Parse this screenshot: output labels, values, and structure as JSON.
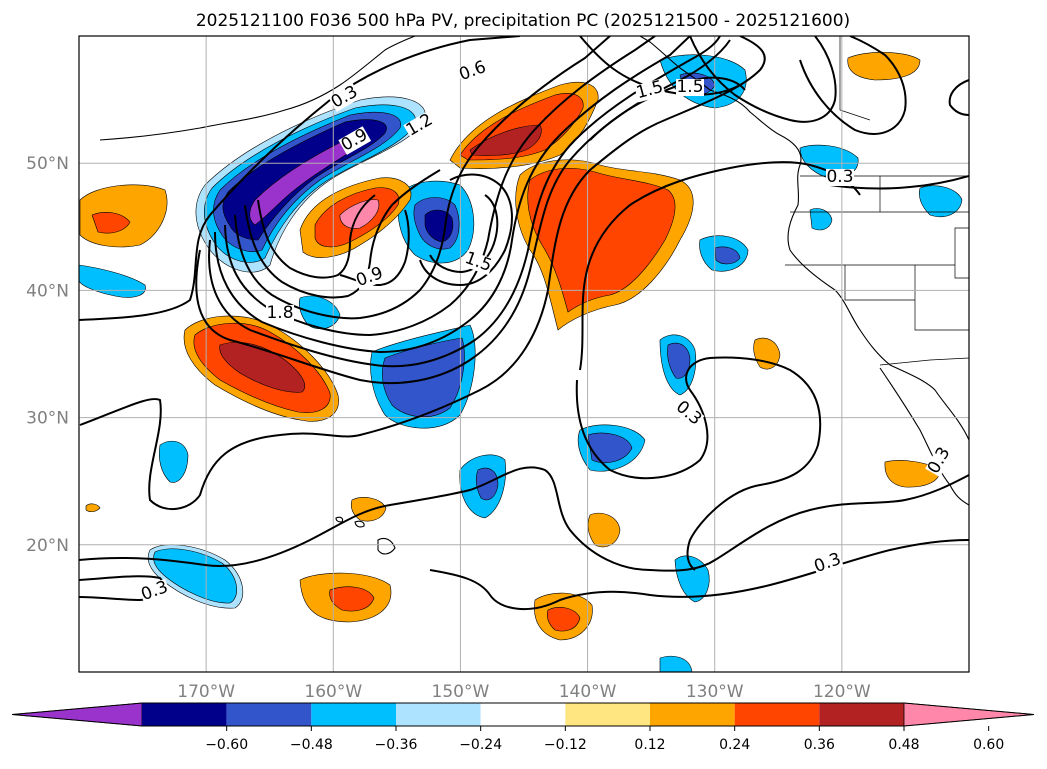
{
  "title": "2025121100 F036 500 hPa PV, precipitation PC (2025121500 - 2025121600)",
  "axes": {
    "lat_labels": [
      "50°N",
      "40°N",
      "30°N",
      "20°N"
    ],
    "lat_values": [
      50,
      40,
      30,
      20
    ],
    "lon_labels": [
      "170°W",
      "160°W",
      "150°W",
      "140°W",
      "130°W",
      "120°W"
    ],
    "lon_values": [
      -170,
      -160,
      -150,
      -140,
      -130,
      -120
    ],
    "lon_range": [
      -180,
      -110
    ],
    "lat_range": [
      10,
      60
    ],
    "grid": true,
    "tick_label_color": "#808080"
  },
  "colorbar": {
    "tick_labels": [
      "−0.60",
      "−0.48",
      "−0.36",
      "−0.24",
      "−0.12",
      "0.12",
      "0.24",
      "0.36",
      "0.48",
      "0.60"
    ],
    "levels": [
      -0.6,
      -0.48,
      -0.36,
      -0.24,
      -0.12,
      0.12,
      0.24,
      0.36,
      0.48,
      0.6
    ],
    "colors": [
      "#9933cc",
      "#00008b",
      "#3355cc",
      "#00bfff",
      "#aee3ff",
      "#ffffff",
      "#ffe680",
      "#ffa500",
      "#ff4500",
      "#b22222",
      "#ff88aa"
    ],
    "extend": "both"
  },
  "chart_data": {
    "type": "contour",
    "contour_labels": [
      "0.3",
      "0.6",
      "0.9",
      "1.2",
      "1.5",
      "1.8",
      "0.9",
      "1.5",
      "1.5",
      "0.3",
      "0.3",
      "0.3",
      "0.3",
      "0.3"
    ],
    "contour_color": "#000000"
  }
}
